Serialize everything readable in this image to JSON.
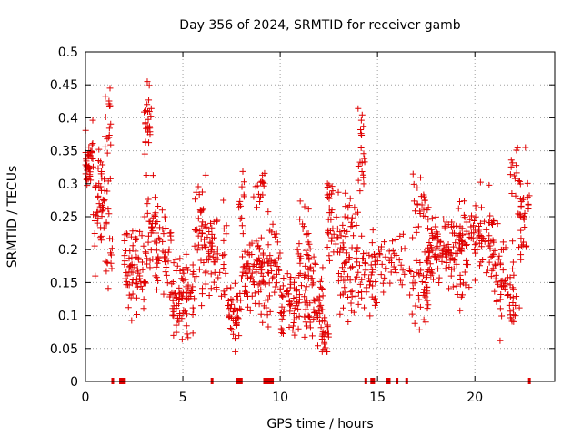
{
  "chart_data": {
    "type": "scatter",
    "title": "Day 356 of 2024, SRMTID for receiver gamb",
    "xlabel": "GPS time / hours",
    "ylabel": "SRMTID / TECUs",
    "xlim": [
      0,
      24.1
    ],
    "ylim": [
      0,
      0.5
    ],
    "x_ticks": [
      0,
      5,
      10,
      15,
      20
    ],
    "x_tick_labels": [
      "0",
      "5",
      "10",
      "15",
      "20"
    ],
    "y_ticks": [
      0,
      0.05,
      0.1,
      0.15,
      0.2,
      0.25,
      0.3,
      0.35,
      0.4,
      0.45,
      0.5
    ],
    "y_tick_labels": [
      "0",
      "0.05",
      "0.1",
      "0.15",
      "0.2",
      "0.25",
      "0.3",
      "0.35",
      "0.4",
      "0.45",
      "0.5"
    ],
    "grid": true,
    "marker": "+",
    "color": "#e00000",
    "series": [
      {
        "name": "SRMTID",
        "clusters": [
          {
            "x_range": [
              0.0,
              0.4
            ],
            "y_center": 0.33,
            "y_spread": 0.035,
            "count": 40
          },
          {
            "x_range": [
              0.4,
              1.0
            ],
            "y_center": 0.26,
            "y_spread": 0.06,
            "count": 45
          },
          {
            "x_range": [
              1.0,
              1.3
            ],
            "y_center": 0.36,
            "y_spread": 0.06,
            "count": 20
          },
          {
            "x_range": [
              1.0,
              1.4
            ],
            "y_center": 0.2,
            "y_spread": 0.04,
            "count": 15
          },
          {
            "x_range": [
              2.0,
              3.0
            ],
            "y_center": 0.17,
            "y_spread": 0.05,
            "count": 70
          },
          {
            "x_range": [
              3.0,
              3.4
            ],
            "y_center": 0.4,
            "y_spread": 0.05,
            "count": 25
          },
          {
            "x_range": [
              3.0,
              3.6
            ],
            "y_center": 0.23,
            "y_spread": 0.05,
            "count": 35
          },
          {
            "x_range": [
              3.6,
              4.4
            ],
            "y_center": 0.2,
            "y_spread": 0.05,
            "count": 45
          },
          {
            "x_range": [
              4.4,
              5.6
            ],
            "y_center": 0.13,
            "y_spread": 0.04,
            "count": 80
          },
          {
            "x_range": [
              5.6,
              6.3
            ],
            "y_center": 0.22,
            "y_spread": 0.06,
            "count": 45
          },
          {
            "x_range": [
              6.3,
              7.3
            ],
            "y_center": 0.2,
            "y_spread": 0.05,
            "count": 50
          },
          {
            "x_range": [
              7.3,
              8.0
            ],
            "y_center": 0.1,
            "y_spread": 0.035,
            "count": 40
          },
          {
            "x_range": [
              7.8,
              8.2
            ],
            "y_center": 0.27,
            "y_spread": 0.04,
            "count": 12
          },
          {
            "x_range": [
              8.0,
              9.3
            ],
            "y_center": 0.16,
            "y_spread": 0.05,
            "count": 80
          },
          {
            "x_range": [
              8.6,
              9.2
            ],
            "y_center": 0.29,
            "y_spread": 0.04,
            "count": 15
          },
          {
            "x_range": [
              9.3,
              10.0
            ],
            "y_center": 0.18,
            "y_spread": 0.05,
            "count": 40
          },
          {
            "x_range": [
              10.0,
              11.0
            ],
            "y_center": 0.12,
            "y_spread": 0.04,
            "count": 60
          },
          {
            "x_range": [
              10.8,
              11.6
            ],
            "y_center": 0.2,
            "y_spread": 0.05,
            "count": 35
          },
          {
            "x_range": [
              11.2,
              12.2
            ],
            "y_center": 0.12,
            "y_spread": 0.04,
            "count": 55
          },
          {
            "x_range": [
              12.0,
              12.5
            ],
            "y_center": 0.07,
            "y_spread": 0.025,
            "count": 25
          },
          {
            "x_range": [
              12.4,
              13.0
            ],
            "y_center": 0.25,
            "y_spread": 0.05,
            "count": 35
          },
          {
            "x_range": [
              13.0,
              14.0
            ],
            "y_center": 0.19,
            "y_spread": 0.06,
            "count": 70
          },
          {
            "x_range": [
              14.0,
              14.4
            ],
            "y_center": 0.35,
            "y_spread": 0.05,
            "count": 20
          },
          {
            "x_range": [
              14.0,
              15.0
            ],
            "y_center": 0.17,
            "y_spread": 0.05,
            "count": 45
          },
          {
            "x_range": [
              15.0,
              16.4
            ],
            "y_center": 0.18,
            "y_spread": 0.04,
            "count": 40
          },
          {
            "x_range": [
              16.6,
              17.6
            ],
            "y_center": 0.15,
            "y_spread": 0.05,
            "count": 45
          },
          {
            "x_range": [
              16.8,
              17.6
            ],
            "y_center": 0.27,
            "y_spread": 0.04,
            "count": 25
          },
          {
            "x_range": [
              17.6,
              19.0
            ],
            "y_center": 0.2,
            "y_spread": 0.04,
            "count": 90
          },
          {
            "x_range": [
              19.0,
              20.0
            ],
            "y_center": 0.2,
            "y_spread": 0.05,
            "count": 60
          },
          {
            "x_range": [
              20.0,
              21.0
            ],
            "y_center": 0.22,
            "y_spread": 0.04,
            "count": 55
          },
          {
            "x_range": [
              21.0,
              22.0
            ],
            "y_center": 0.15,
            "y_spread": 0.05,
            "count": 50
          },
          {
            "x_range": [
              21.8,
              22.3
            ],
            "y_center": 0.1,
            "y_spread": 0.02,
            "count": 12
          },
          {
            "x_range": [
              21.8,
              22.2
            ],
            "y_center": 0.32,
            "y_spread": 0.03,
            "count": 12
          },
          {
            "x_range": [
              22.2,
              22.8
            ],
            "y_center": 0.27,
            "y_spread": 0.05,
            "count": 35
          }
        ],
        "zero_x": [
          1.4,
          1.8,
          1.9,
          2.0,
          6.5,
          7.8,
          7.9,
          8.0,
          9.2,
          9.3,
          9.4,
          9.5,
          9.6,
          14.4,
          14.7,
          14.8,
          15.5,
          15.6,
          16.0,
          16.5,
          22.8
        ]
      }
    ]
  }
}
